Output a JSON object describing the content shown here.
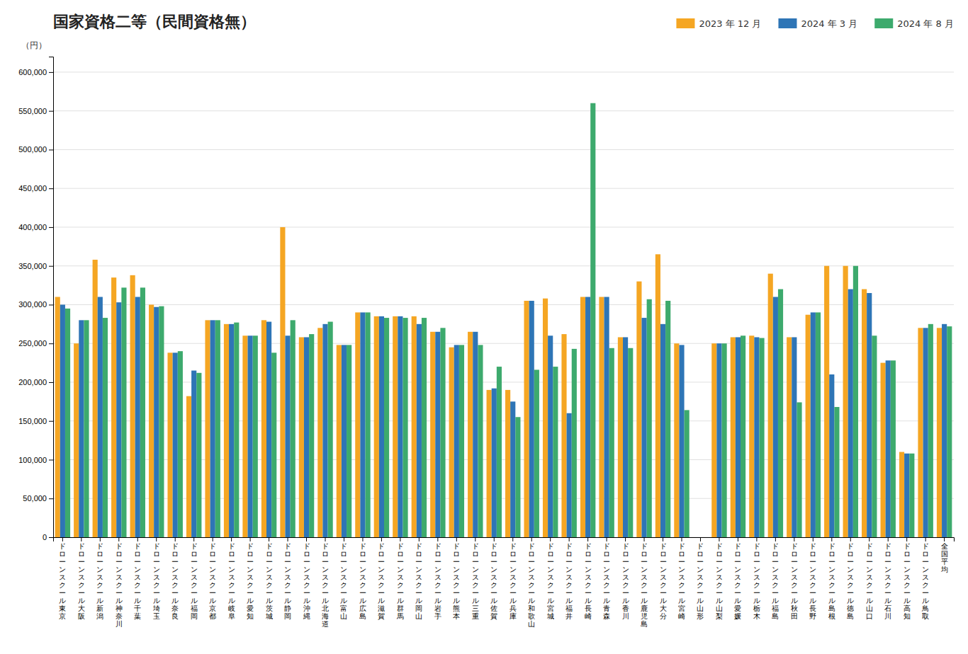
{
  "chart_data": {
    "type": "bar",
    "title": "国家資格二等（民間資格無）",
    "ylabel": "（円）",
    "categories": [
      "ドローンスクール東京",
      "ドローンスクール大阪",
      "ドローンスクール新潟",
      "ドローンスクール神奈川",
      "ドローンスクール千葉",
      "ドローンスクール埼玉",
      "ドローンスクール奈良",
      "ドローンスクール福岡",
      "ドローンスクール京都",
      "ドローンスクール岐阜",
      "ドローンスクール愛知",
      "ドローンスクール茨城",
      "ドローンスクール静岡",
      "ドローンスクール沖縄",
      "ドローンスクール北海道",
      "ドローンスクール富山",
      "ドローンスクール広島",
      "ドローンスクール滋賀",
      "ドローンスクール群馬",
      "ドローンスクール岡山",
      "ドローンスクール岩手",
      "ドローンスクール熊本",
      "ドローンスクール三重",
      "ドローンスクール佐賀",
      "ドローンスクール兵庫",
      "ドローンスクール和歌山",
      "ドローンスクール宮城",
      "ドローンスクール福井",
      "ドローンスクール長崎",
      "ドローンスクール青森",
      "ドローンスクール香川",
      "ドローンスクール鹿児島",
      "ドローンスクール大分",
      "ドローンスクール宮崎",
      "ドローンスクール山形",
      "ドローンスクール山梨",
      "ドローンスクール愛媛",
      "ドローンスクール栃木",
      "ドローンスクール福島",
      "ドローンスクール秋田",
      "ドローンスクール長野",
      "ドローンスクール島根",
      "ドローンスクール徳島",
      "ドローンスクール山口",
      "ドローンスクール石川",
      "ドローンスクール高知",
      "ドローンスクール鳥取",
      "全国平均"
    ],
    "series": [
      {
        "name": "2023 年 12 月",
        "color": "#F5A623",
        "values": [
          310000,
          250000,
          358000,
          335000,
          338000,
          300000,
          238000,
          182000,
          280000,
          275000,
          260000,
          280000,
          400000,
          258000,
          270000,
          248000,
          290000,
          285000,
          285000,
          285000,
          265000,
          245000,
          265000,
          190000,
          190000,
          305000,
          308000,
          262000,
          310000,
          310000,
          258000,
          330000,
          365000,
          250000,
          0,
          250000,
          258000,
          260000,
          340000,
          258000,
          287000,
          350000,
          350000,
          320000,
          225000,
          110000,
          270000,
          270000
        ]
      },
      {
        "name": "2024 年 3 月",
        "color": "#2E75B6",
        "values": [
          300000,
          280000,
          310000,
          303000,
          310000,
          297000,
          238000,
          215000,
          280000,
          275000,
          260000,
          278000,
          260000,
          258000,
          275000,
          248000,
          290000,
          285000,
          285000,
          275000,
          265000,
          248000,
          265000,
          192000,
          175000,
          305000,
          260000,
          160000,
          310000,
          310000,
          258000,
          283000,
          275000,
          248000,
          0,
          250000,
          258000,
          258000,
          310000,
          258000,
          290000,
          210000,
          320000,
          315000,
          228000,
          108000,
          270000,
          275000
        ]
      },
      {
        "name": "2024 年 8 月",
        "color": "#3DAA6D",
        "values": [
          295000,
          280000,
          283000,
          322000,
          322000,
          298000,
          240000,
          212000,
          280000,
          277000,
          260000,
          238000,
          280000,
          262000,
          278000,
          248000,
          290000,
          283000,
          283000,
          283000,
          270000,
          248000,
          248000,
          220000,
          155000,
          216000,
          220000,
          243000,
          560000,
          244000,
          244000,
          307000,
          305000,
          164000,
          0,
          250000,
          260000,
          257000,
          320000,
          174000,
          290000,
          168000,
          350000,
          260000,
          228000,
          108000,
          275000,
          272000
        ]
      }
    ],
    "ylim": [
      0,
      620000
    ],
    "yticks": [
      0,
      {
        "value": 50000,
        "label": "50,000"
      },
      {
        "value": 100000,
        "label": "100,000"
      },
      {
        "value": 150000,
        "label": "150,000"
      },
      {
        "value": 200000,
        "label": "200,000"
      },
      {
        "value": 250000,
        "label": "250,000"
      },
      {
        "value": 300000,
        "label": "300,000"
      },
      {
        "value": 350000,
        "label": "350,000"
      },
      {
        "value": 400000,
        "label": "400,000"
      },
      {
        "value": 450000,
        "label": "450,000"
      },
      {
        "value": 500000,
        "label": "500,000"
      },
      {
        "value": 550000,
        "label": "550,000"
      },
      {
        "value": 600000,
        "label": "600,000"
      }
    ],
    "grid": true,
    "legend": "upper right"
  }
}
